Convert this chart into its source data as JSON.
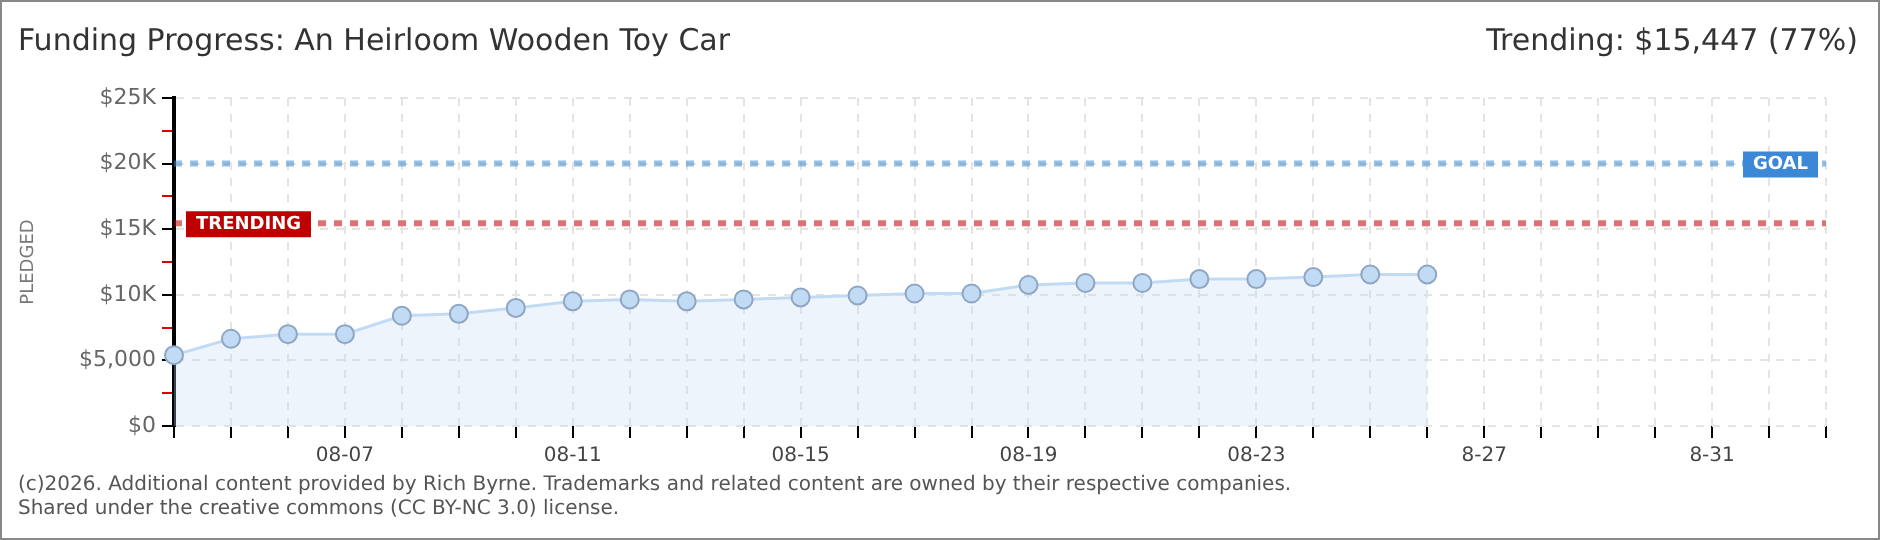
{
  "chart_data": {
    "type": "area",
    "title": "Funding Progress: An Heirloom Wooden Toy Car",
    "ylabel": "PLEDGED",
    "categories": [
      null,
      null,
      null,
      "08-07",
      null,
      null,
      null,
      "08-11",
      null,
      null,
      null,
      "08-15",
      null,
      null,
      null,
      "08-19",
      null,
      null,
      null,
      "08-23",
      null,
      null,
      null,
      "8-27",
      null,
      null,
      null,
      "8-31",
      null,
      null
    ],
    "series": [
      {
        "color": "#c2dbf5",
        "values": [
          5400,
          6650,
          7000,
          7000,
          8400,
          8550,
          9000,
          9500,
          9650,
          9500,
          9650,
          9800,
          9950,
          10100,
          10100,
          10750,
          10900,
          10900,
          11200,
          11200,
          11350,
          11550,
          11550,
          null,
          null,
          null,
          null,
          null,
          null,
          null
        ]
      }
    ],
    "ylim": [
      0,
      25000
    ],
    "yticks": [
      {
        "value": 0,
        "label": "$0"
      },
      {
        "value": 2500,
        "label": null
      },
      {
        "value": 5000,
        "label": "$5,000"
      },
      {
        "value": 7500,
        "label": null
      },
      {
        "value": 10000,
        "label": "$10K"
      },
      {
        "value": 12500,
        "label": null
      },
      {
        "value": 15000,
        "label": "$15K"
      },
      {
        "value": 17500,
        "label": null
      },
      {
        "value": 20000,
        "label": "$20K"
      },
      {
        "value": 22500,
        "label": null
      },
      {
        "value": 25000,
        "label": "$25K"
      }
    ],
    "grid": true,
    "marker": "circle",
    "line_style": "solid",
    "ref_lines": [
      {
        "axis": "y",
        "value": 20000,
        "label": "GOAL",
        "color": "#3c87d6",
        "line_style": "dotted"
      },
      {
        "axis": "y",
        "value": 15447,
        "label": "TRENDING",
        "color": "#c00000",
        "line_style": "dotted"
      }
    ],
    "annotations": [
      "Trending: $15,447 (77%)",
      "(c)2026. Additional content provided by Rich Byrne. Trademarks and related content are owned by their respective companies.",
      "Shared under the creative commons (CC BY-NC 3.0) license."
    ]
  }
}
